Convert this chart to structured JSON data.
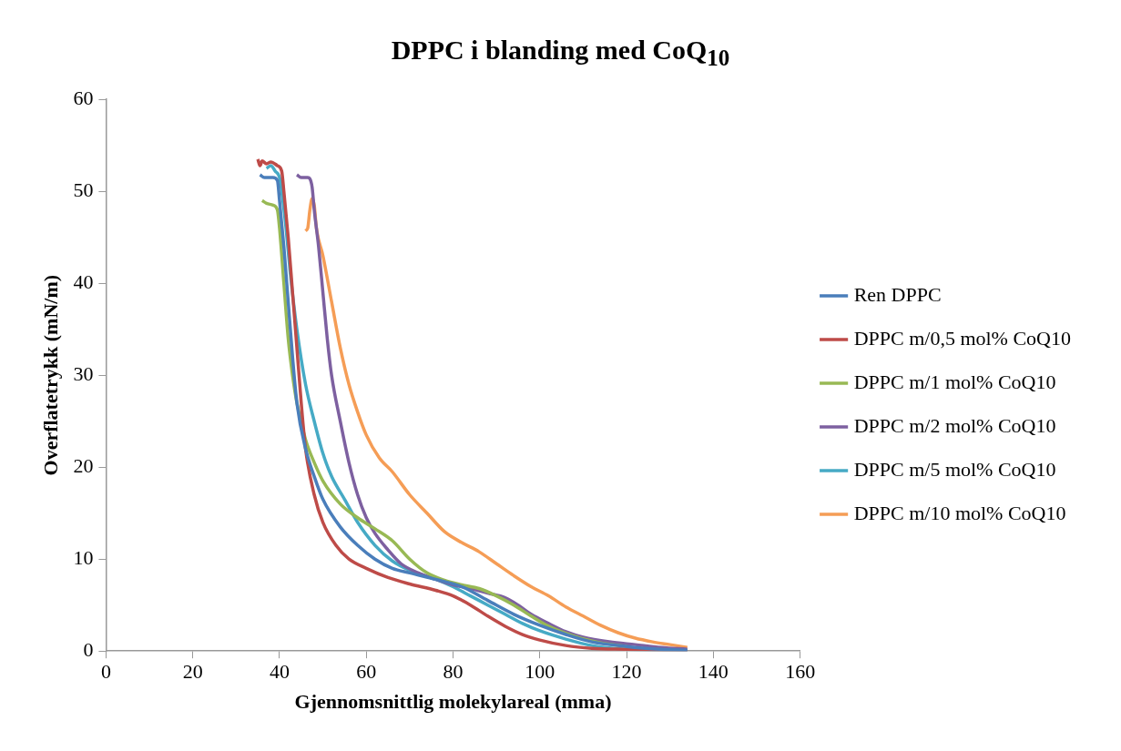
{
  "chart_data": {
    "type": "line",
    "title": "DPPC i blanding med CoQ$_{10}$",
    "xlabel": "Gjennomsnittlig molekylareal (mma)",
    "ylabel": "Overflatetrykk (mN/m)",
    "xlim": [
      0,
      160
    ],
    "xticks": [
      0,
      20,
      40,
      60,
      80,
      100,
      120,
      140,
      160
    ],
    "ylim": [
      0,
      60
    ],
    "yticks": [
      0,
      10,
      20,
      30,
      40,
      50,
      60
    ],
    "grid": false,
    "legend": "right",
    "marker": "none",
    "line_style": "solid",
    "series": [
      {
        "name": "Ren DPPC",
        "color": "#4a7ebb",
        "x": [
          35.5,
          36.5,
          38.5,
          39.5,
          40,
          41,
          42,
          43,
          44,
          46,
          48,
          50,
          54,
          58,
          62,
          66,
          70,
          76,
          82,
          88,
          94,
          100,
          106,
          112,
          120,
          128,
          134
        ],
        "values": [
          51.8,
          51.5,
          51.5,
          51.2,
          49,
          44,
          38,
          32,
          27,
          22,
          19,
          16.5,
          13.5,
          11.5,
          10,
          9,
          8.5,
          7.8,
          7,
          5.5,
          4,
          2.8,
          1.8,
          1,
          0.5,
          0.2,
          0.1
        ]
      },
      {
        "name": "DPPC m/0,5 mol% CoQ10",
        "color": "#be4b48",
        "x": [
          35,
          35.5,
          36,
          37,
          38,
          39.5,
          40.5,
          41,
          42,
          43,
          44,
          45,
          46,
          48,
          50,
          53,
          56,
          60,
          65,
          70,
          76,
          80,
          84,
          88,
          92,
          96,
          100,
          106,
          112,
          120,
          128,
          134
        ],
        "values": [
          53.5,
          52.8,
          53.3,
          53,
          53.2,
          52.8,
          52.2,
          50,
          45,
          39,
          33,
          27,
          22,
          17,
          14,
          11.5,
          10,
          9,
          8,
          7.3,
          6.6,
          6,
          5,
          3.8,
          2.7,
          1.8,
          1.2,
          0.6,
          0.3,
          0.2,
          0.1,
          0
        ]
      },
      {
        "name": "DPPC m/1 mol% CoQ10",
        "color": "#98b954",
        "x": [
          36,
          37,
          38.5,
          39.5,
          40,
          41,
          42,
          43,
          44,
          46,
          48,
          50,
          54,
          58,
          62,
          66,
          70,
          74,
          78,
          82,
          86,
          90,
          94,
          98,
          102,
          108,
          114,
          120
        ],
        "values": [
          49,
          48.7,
          48.5,
          48,
          46,
          40,
          34,
          30,
          27,
          23,
          20.5,
          18.5,
          16,
          14.5,
          13.3,
          12,
          10,
          8.5,
          7.7,
          7.2,
          6.8,
          6,
          5,
          3.8,
          2.7,
          1.6,
          0.9,
          0.5
        ]
      },
      {
        "name": "DPPC m/2 mol% CoQ10",
        "color": "#7d60a0",
        "x": [
          44,
          45,
          46.5,
          47.5,
          48,
          49,
          50,
          51,
          52,
          54,
          56,
          58,
          60,
          62,
          65,
          68,
          72,
          76,
          80,
          84,
          88,
          92,
          95,
          98,
          102,
          106,
          110,
          116,
          122,
          128,
          134
        ],
        "values": [
          51.8,
          51.5,
          51.5,
          50.5,
          48,
          44,
          39,
          34,
          30,
          25,
          20.5,
          17,
          14.5,
          12.8,
          11,
          9.5,
          8.5,
          7.8,
          7.2,
          6.8,
          6.3,
          5.8,
          5,
          4,
          3,
          2.1,
          1.5,
          1,
          0.7,
          0.4,
          0.2
        ]
      },
      {
        "name": "DPPC m/5 mol% CoQ10",
        "color": "#46aac5",
        "x": [
          37,
          38,
          39,
          40,
          40.5,
          41.5,
          42.5,
          44,
          46,
          48,
          50,
          52,
          55,
          58,
          62,
          66,
          70,
          76,
          80,
          84,
          88,
          92,
          96,
          100,
          106,
          112,
          120,
          128,
          134
        ],
        "values": [
          52.5,
          52.8,
          52.2,
          51.5,
          50,
          46,
          41,
          35,
          29,
          25,
          21.5,
          19,
          16.5,
          14,
          11.5,
          9.8,
          8.8,
          7.8,
          7,
          6,
          5,
          4,
          3,
          2.2,
          1.3,
          0.6,
          0.2,
          0.1,
          0
        ]
      },
      {
        "name": "DPPC m/10 mol% CoQ10",
        "color": "#f59d56",
        "x": [
          46,
          46.5,
          47,
          47.5,
          48,
          48.5,
          50,
          52,
          54,
          56,
          58,
          60,
          63,
          66,
          70,
          74,
          78,
          82,
          86,
          90,
          94,
          98,
          102,
          106,
          110,
          114,
          118,
          122,
          126,
          130,
          134
        ],
        "values": [
          45.7,
          46,
          48,
          49.2,
          48.5,
          46,
          43,
          38,
          33,
          29,
          26,
          23.5,
          21,
          19.5,
          17,
          15,
          13,
          11.8,
          10.8,
          9.5,
          8.2,
          7,
          6,
          4.8,
          3.8,
          2.8,
          2,
          1.4,
          1,
          0.7,
          0.4
        ]
      }
    ]
  }
}
